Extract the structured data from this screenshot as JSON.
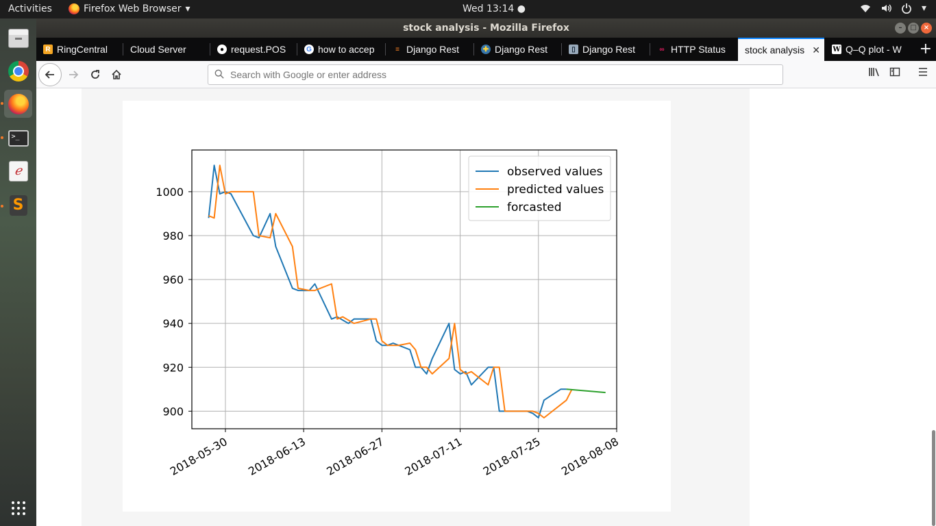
{
  "topbar": {
    "activities": "Activities",
    "app_name": "Firefox Web Browser",
    "app_menu_arrow": "▾",
    "clock": "Wed 13:14 ●",
    "tray": [
      "wifi-icon",
      "volume-icon",
      "power-icon"
    ]
  },
  "dock": {
    "items": [
      "files",
      "chrome",
      "firefox",
      "terminal",
      "pdf-viewer",
      "sublime-text",
      "show-applications"
    ]
  },
  "window": {
    "title": "stock analysis - Mozilla Firefox"
  },
  "tabs": [
    {
      "label": "RingCentral",
      "favicon": "R"
    },
    {
      "label": "Cloud Server",
      "favicon": ""
    },
    {
      "label": "request.POS",
      "favicon": "github"
    },
    {
      "label": "how to accep",
      "favicon": "G"
    },
    {
      "label": "Django Rest",
      "favicon": "stack"
    },
    {
      "label": "Django Rest",
      "favicon": "python"
    },
    {
      "label": "Django Rest",
      "favicon": "doc"
    },
    {
      "label": "HTTP Status",
      "favicon": "http"
    },
    {
      "label": "stock analysis",
      "favicon": "",
      "selected": true
    },
    {
      "label": "Q–Q plot - W",
      "favicon": "W"
    }
  ],
  "navbar": {
    "search_placeholder": "Search with Google or enter address"
  },
  "chart_data": {
    "type": "line",
    "xlim": [
      "2018-05-24",
      "2018-08-08"
    ],
    "ylim": [
      892,
      1019
    ],
    "x_ticks": [
      "2018-05-30",
      "2018-06-13",
      "2018-06-27",
      "2018-07-11",
      "2018-07-25",
      "2018-08-08"
    ],
    "y_ticks": [
      900,
      920,
      940,
      960,
      980,
      1000
    ],
    "grid": true,
    "legend_position": "top-right",
    "series": [
      {
        "name": "observed values",
        "color": "#1f77b4",
        "points": [
          [
            "2018-05-27",
            988
          ],
          [
            "2018-05-28",
            1012
          ],
          [
            "2018-05-29",
            999
          ],
          [
            "2018-05-30",
            1000
          ],
          [
            "2018-05-31",
            999
          ],
          [
            "2018-06-04",
            980
          ],
          [
            "2018-06-05",
            979
          ],
          [
            "2018-06-07",
            990
          ],
          [
            "2018-06-08",
            975
          ],
          [
            "2018-06-11",
            956
          ],
          [
            "2018-06-12",
            955
          ],
          [
            "2018-06-14",
            955
          ],
          [
            "2018-06-15",
            958
          ],
          [
            "2018-06-18",
            942
          ],
          [
            "2018-06-19",
            943
          ],
          [
            "2018-06-21",
            940
          ],
          [
            "2018-06-22",
            942
          ],
          [
            "2018-06-25",
            942
          ],
          [
            "2018-06-26",
            932
          ],
          [
            "2018-06-27",
            930
          ],
          [
            "2018-06-28",
            930
          ],
          [
            "2018-06-29",
            931
          ],
          [
            "2018-07-02",
            928
          ],
          [
            "2018-07-03",
            920
          ],
          [
            "2018-07-04",
            920
          ],
          [
            "2018-07-05",
            917
          ],
          [
            "2018-07-06",
            924
          ],
          [
            "2018-07-09",
            940
          ],
          [
            "2018-07-10",
            919
          ],
          [
            "2018-07-11",
            917
          ],
          [
            "2018-07-12",
            918
          ],
          [
            "2018-07-13",
            912
          ],
          [
            "2018-07-16",
            920
          ],
          [
            "2018-07-17",
            920
          ],
          [
            "2018-07-18",
            900
          ],
          [
            "2018-07-19",
            900
          ],
          [
            "2018-07-23",
            900
          ],
          [
            "2018-07-24",
            899
          ],
          [
            "2018-07-25",
            897
          ],
          [
            "2018-07-26",
            905
          ],
          [
            "2018-07-29",
            910
          ],
          [
            "2018-07-30",
            910
          ]
        ]
      },
      {
        "name": "predicted values",
        "color": "#ff7f0e",
        "points": [
          [
            "2018-05-27",
            989
          ],
          [
            "2018-05-28",
            988
          ],
          [
            "2018-05-29",
            1012
          ],
          [
            "2018-05-30",
            999
          ],
          [
            "2018-05-31",
            1000
          ],
          [
            "2018-06-04",
            1000
          ],
          [
            "2018-06-05",
            980
          ],
          [
            "2018-06-07",
            979
          ],
          [
            "2018-06-08",
            990
          ],
          [
            "2018-06-11",
            975
          ],
          [
            "2018-06-12",
            956
          ],
          [
            "2018-06-14",
            955
          ],
          [
            "2018-06-15",
            955
          ],
          [
            "2018-06-18",
            958
          ],
          [
            "2018-06-19",
            942
          ],
          [
            "2018-06-20",
            943
          ],
          [
            "2018-06-22",
            940
          ],
          [
            "2018-06-25",
            942
          ],
          [
            "2018-06-26",
            942
          ],
          [
            "2018-06-27",
            932
          ],
          [
            "2018-06-28",
            930
          ],
          [
            "2018-06-30",
            930
          ],
          [
            "2018-07-02",
            931
          ],
          [
            "2018-07-03",
            928
          ],
          [
            "2018-07-04",
            920
          ],
          [
            "2018-07-05",
            920
          ],
          [
            "2018-07-06",
            917
          ],
          [
            "2018-07-09",
            924
          ],
          [
            "2018-07-10",
            940
          ],
          [
            "2018-07-11",
            919
          ],
          [
            "2018-07-12",
            917
          ],
          [
            "2018-07-13",
            918
          ],
          [
            "2018-07-16",
            912
          ],
          [
            "2018-07-17",
            920
          ],
          [
            "2018-07-18",
            920
          ],
          [
            "2018-07-19",
            900
          ],
          [
            "2018-07-24",
            900
          ],
          [
            "2018-07-25",
            899
          ],
          [
            "2018-07-26",
            897
          ],
          [
            "2018-07-30",
            905
          ],
          [
            "2018-07-31",
            910
          ]
        ]
      },
      {
        "name": "forcasted",
        "color": "#2ca02c",
        "points": [
          [
            "2018-07-30",
            910
          ],
          [
            "2018-08-06",
            908.5
          ]
        ]
      }
    ]
  }
}
